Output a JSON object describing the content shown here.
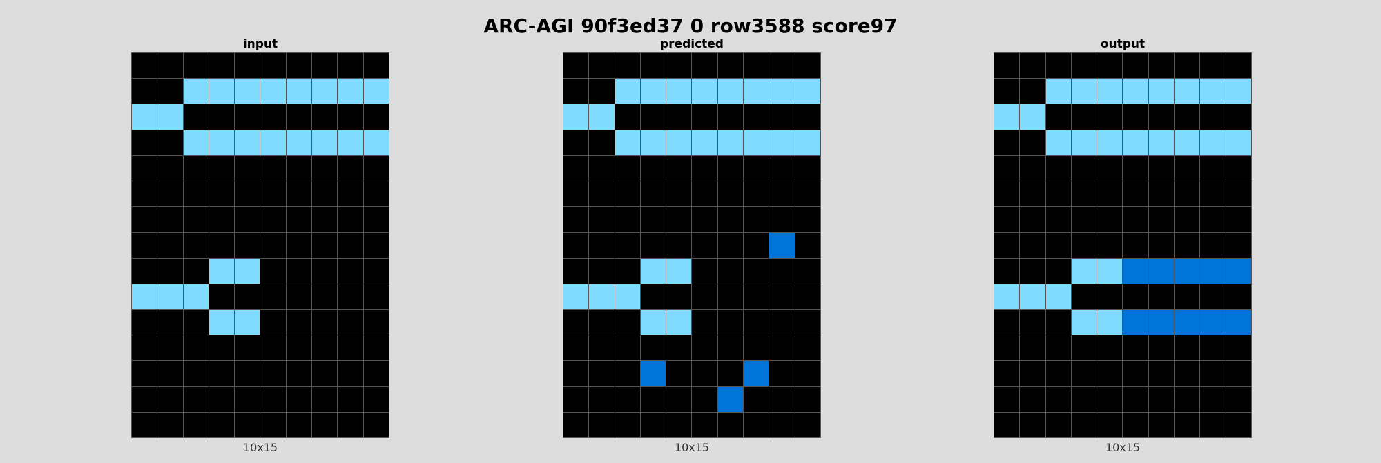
{
  "title": "ARC-AGI 90f3ed37 0 row3588 score97",
  "palette": [
    "#000000",
    "#7fdbff",
    "#0074d9"
  ],
  "panels": [
    {
      "label": "input",
      "size": "10x15",
      "rows": [
        "0000000000",
        "0011111111",
        "1100000000",
        "0011111111",
        "0000000000",
        "0000000000",
        "0000000000",
        "0000000000",
        "0001100000",
        "1110000000",
        "0001100000",
        "0000000000",
        "0000000000",
        "0000000000",
        "0000000000"
      ]
    },
    {
      "label": "predicted",
      "size": "10x15",
      "rows": [
        "0000000000",
        "0011111111",
        "1100000000",
        "0011111111",
        "0000000000",
        "0000000000",
        "0000000000",
        "0000000020",
        "0001100000",
        "1110000000",
        "0001100000",
        "0000000000",
        "0002000200",
        "0000002000",
        "0000000000"
      ]
    },
    {
      "label": "output",
      "size": "10x15",
      "rows": [
        "0000000000",
        "0011111111",
        "1100000000",
        "0011111111",
        "0000000000",
        "0000000000",
        "0000000000",
        "0000000000",
        "0001122222",
        "1110000000",
        "0001122222",
        "0000000000",
        "0000000000",
        "0000000000",
        "0000000000"
      ]
    }
  ]
}
